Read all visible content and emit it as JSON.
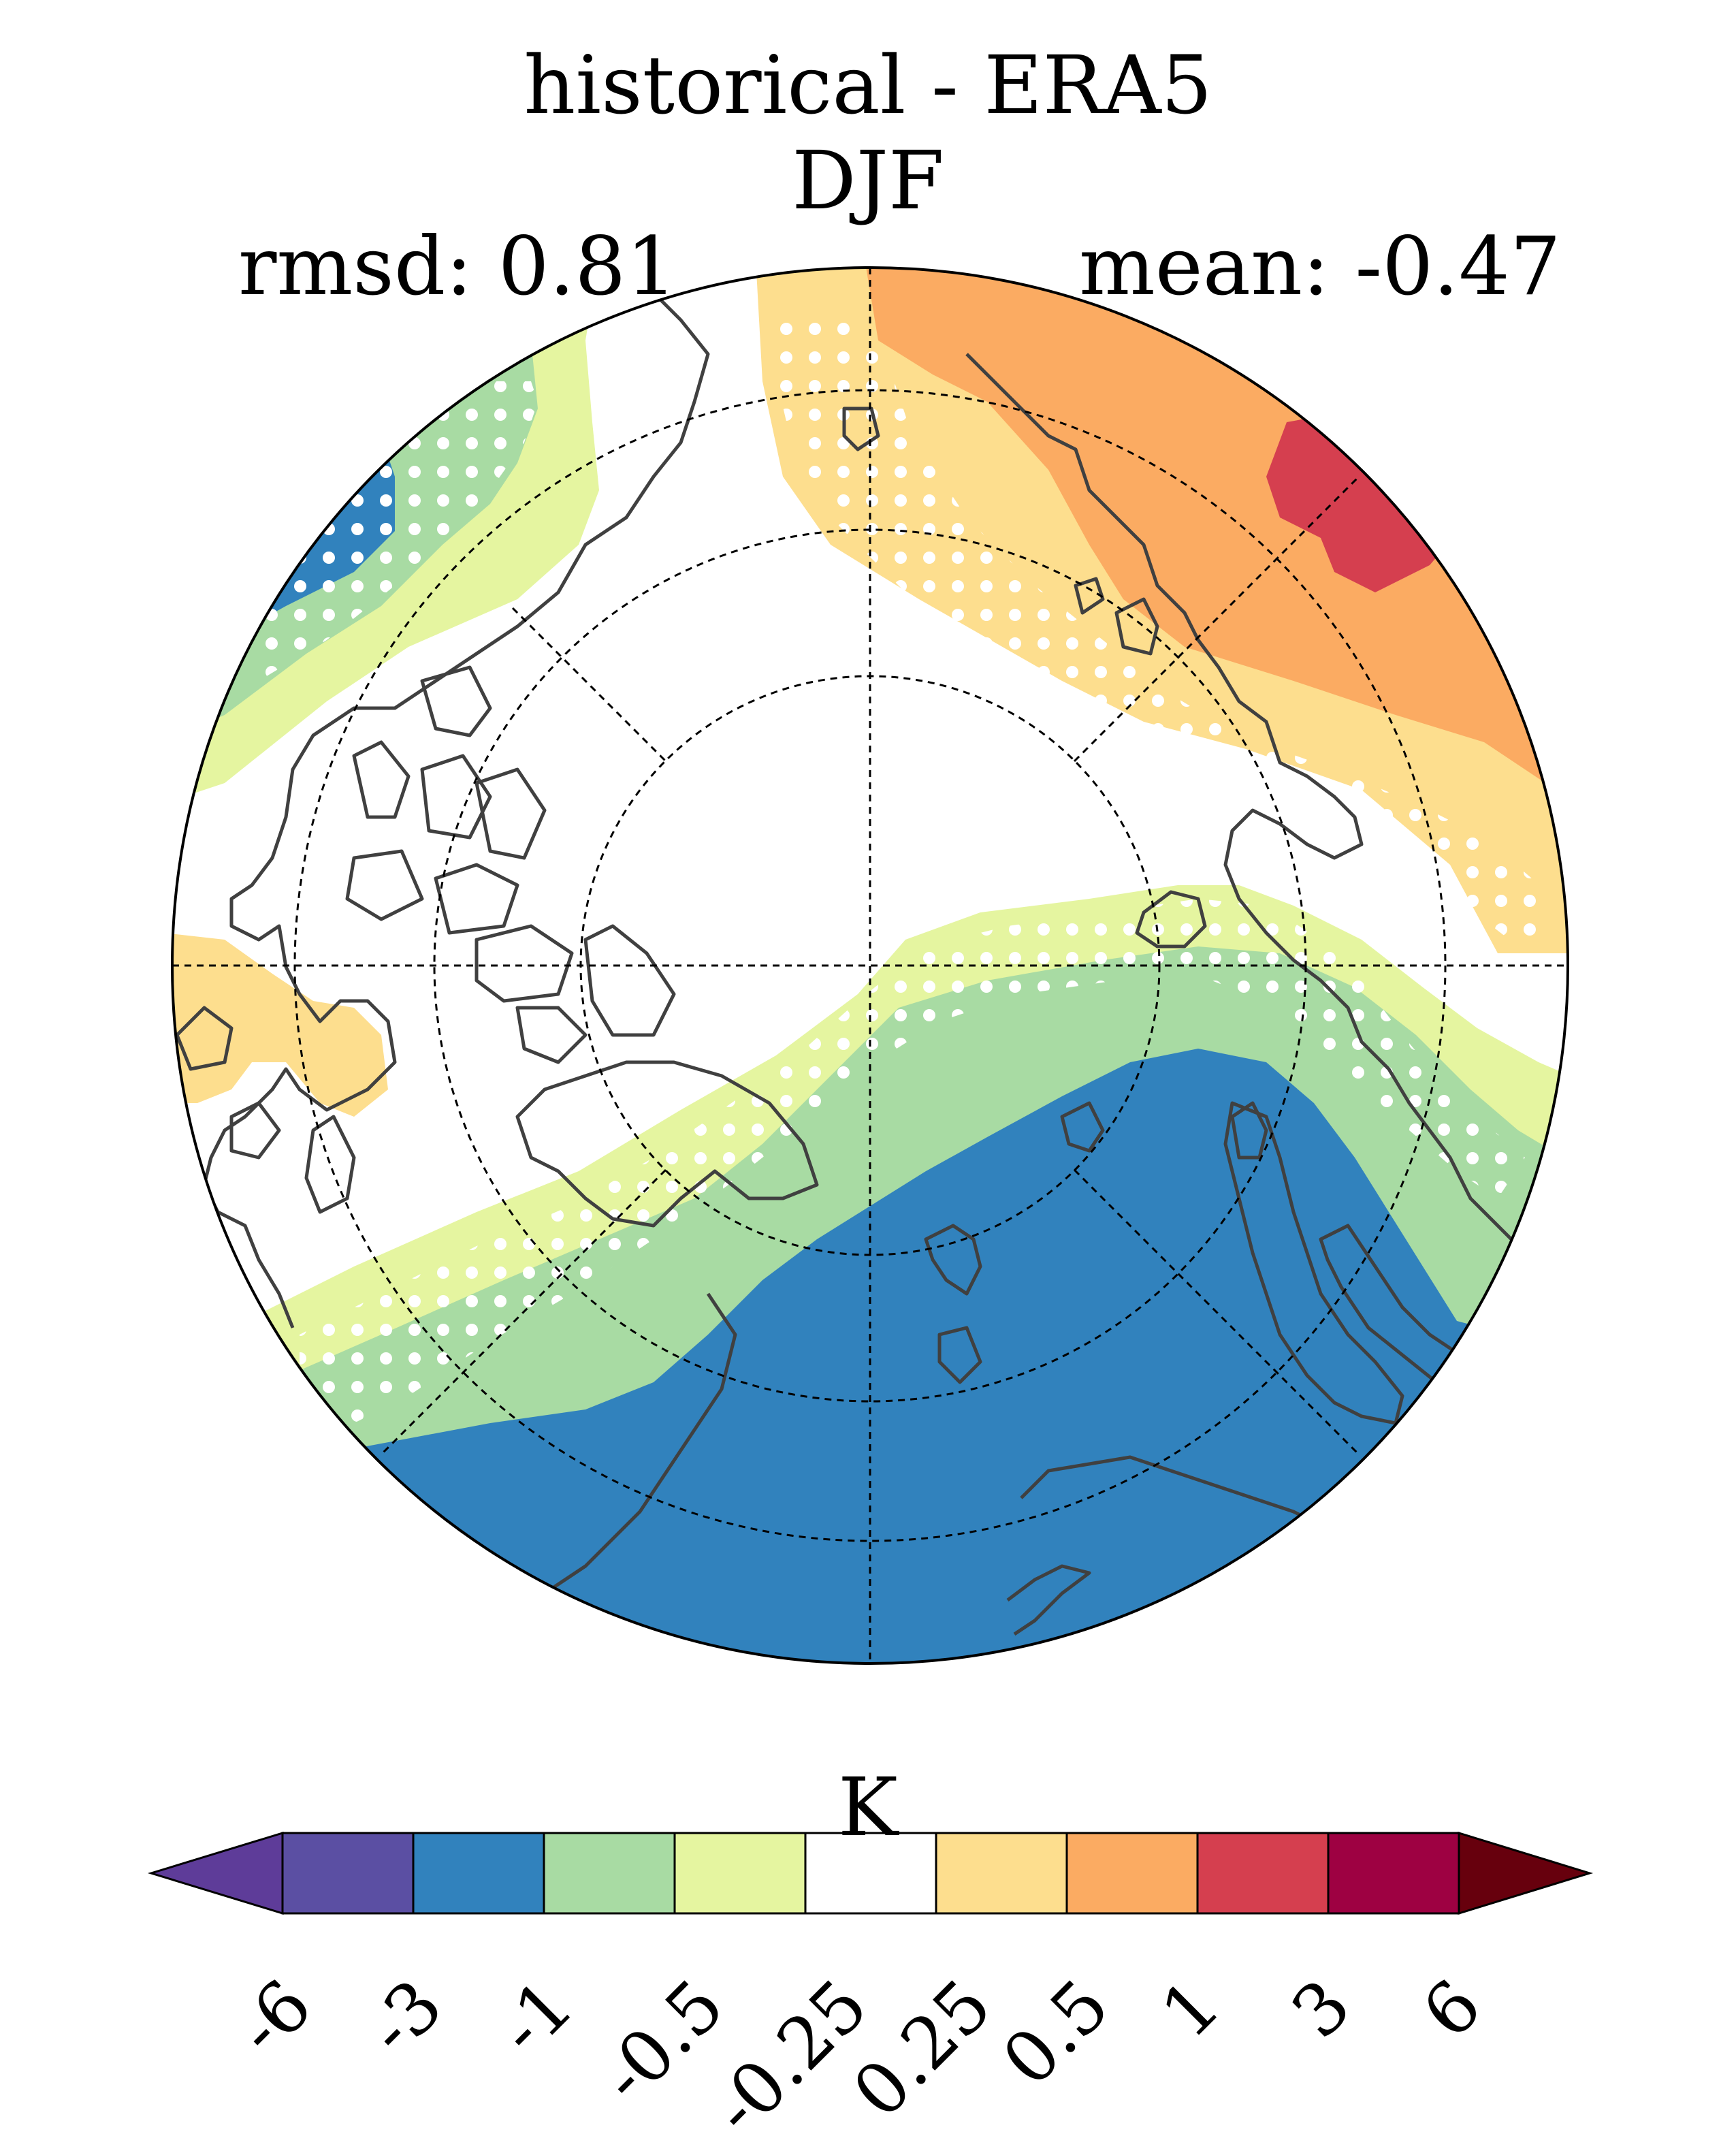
{
  "title": {
    "line1": "historical - ERA5",
    "line2": "DJF"
  },
  "stats": {
    "rmsd": "rmsd: 0.81",
    "mean": "mean: -0.47"
  },
  "map": {
    "projection": "north-polar-stereographic",
    "colors": {
      "blue": "#3182bd",
      "green": "#a8dba3",
      "yellowgreen": "#e5f5a0",
      "white": "#ffffff",
      "yellow": "#fdde8e",
      "orange": "#fbab62",
      "red": "#d53f4f",
      "coast": "#404040",
      "stipple": "#ffffff"
    }
  },
  "colorbar": {
    "unit": "K",
    "ticks": [
      "-6",
      "-3",
      "-1",
      "-0.5",
      "-0.25",
      "0.25",
      "0.5",
      "1",
      "3",
      "6"
    ],
    "colors": [
      "#5e3c99",
      "#5b4fa3",
      "#3182bd",
      "#a8dba3",
      "#e5f5a0",
      "#ffffff",
      "#fdde8e",
      "#fbab62",
      "#d53f4f",
      "#9e0142",
      "#67000d"
    ]
  }
}
